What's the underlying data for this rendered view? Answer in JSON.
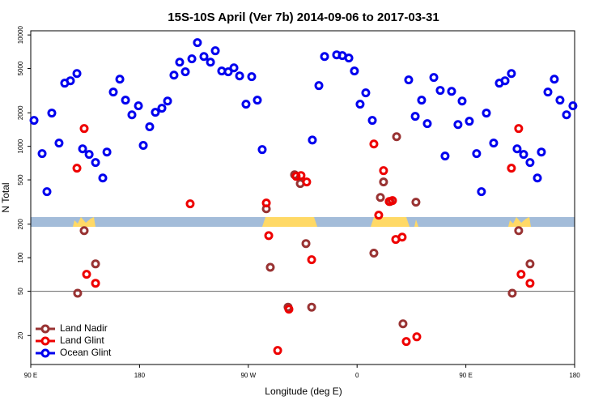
{
  "chart_data": {
    "type": "scatter",
    "title": "15S-10S April (Ver 7b)   2014-09-06 to 2017-03-31",
    "x_label": "Longitude (deg E)",
    "y_label": "N Total",
    "xlim": [
      90,
      540
    ],
    "xticks": [
      {
        "value": 90,
        "label": "90 E"
      },
      180,
      {
        "value": 270,
        "label": "90 W"
      },
      {
        "value": 360,
        "label": "0"
      },
      {
        "value": 450,
        "label": "90 E"
      },
      {
        "value": 540,
        "label": "180"
      }
    ],
    "ylim": [
      11,
      10900
    ],
    "yticks": [
      20,
      50,
      100,
      200,
      500,
      1000,
      2000,
      5000,
      10000
    ],
    "log_y": true,
    "hline": 50,
    "legend": "bottom-left",
    "series": [
      {
        "name": "Land Nadir",
        "color": "#993333",
        "x": [
          128.8,
          134.2,
          143.6,
          284.9,
          288.2,
          302.9,
          308.3,
          313.0,
          317.7,
          322.4,
          373.9,
          379.3,
          381.9,
          387.3,
          392.7,
          398.0,
          408.7,
          488.4,
          493.7,
          503.1
        ],
        "values": [
          48,
          175,
          88,
          275,
          82,
          36,
          556,
          463,
          134,
          36,
          110,
          348,
          479,
          320,
          1220,
          25.5,
          315,
          48,
          175,
          88
        ]
      },
      {
        "name": "Land Glint",
        "color": "#ee0000",
        "x": [
          128.2,
          134.2,
          136.2,
          143.6,
          221.9,
          284.9,
          286.9,
          294.3,
          303.6,
          309.6,
          313.6,
          318.3,
          322.4,
          373.9,
          377.9,
          381.9,
          386.6,
          389.3,
          392.0,
          397.3,
          400.7,
          409.4,
          487.7,
          493.7,
          495.7,
          503.1
        ],
        "values": [
          637,
          1445,
          71,
          59,
          305,
          310,
          158,
          14.7,
          34.5,
          538,
          547,
          479,
          96,
          1050,
          241,
          605,
          320,
          326,
          146,
          153,
          17.7,
          19.5,
          637,
          1445,
          71,
          59
        ]
      },
      {
        "name": "Ocean Glint",
        "color": "#0000ee",
        "x": [
          92.7,
          99.4,
          103.4,
          107.4,
          113.4,
          118.1,
          122.8,
          128.2,
          132.9,
          138.3,
          143.6,
          149.6,
          153.0,
          158.3,
          163.7,
          168.4,
          173.7,
          179.1,
          183.1,
          188.4,
          193.1,
          198.5,
          203.2,
          208.5,
          213.2,
          217.9,
          223.3,
          227.9,
          233.3,
          238.7,
          242.7,
          248.0,
          253.4,
          258.1,
          262.8,
          268.1,
          272.8,
          277.5,
          281.5,
          323.0,
          328.4,
          333.1,
          343.1,
          347.8,
          353.2,
          357.8,
          362.5,
          367.2,
          372.6,
          402.7,
          408.1,
          413.4,
          418.1,
          423.5,
          428.8,
          432.8,
          438.2,
          443.5,
          446.9,
          452.9,
          458.9,
          462.9,
          467.0,
          473.0,
          477.7,
          482.4,
          487.7,
          492.4,
          497.8,
          503.1,
          509.2,
          512.5,
          517.9,
          523.2,
          527.9,
          533.3,
          538.6
        ],
        "values": [
          1710,
          860,
          392,
          1990,
          1070,
          3690,
          3880,
          4510,
          950,
          846,
          716,
          520,
          889,
          3070,
          4010,
          2600,
          1920,
          2310,
          1020,
          1500,
          2020,
          2200,
          2550,
          4360,
          5700,
          4670,
          6100,
          8530,
          6410,
          5700,
          7210,
          4750,
          4670,
          5070,
          4290,
          2390,
          4220,
          2600,
          935,
          1140,
          3510,
          6410,
          6630,
          6530,
          6210,
          4750,
          2390,
          3020,
          1710,
          3950,
          1860,
          2600,
          1600,
          4150,
          3180,
          818,
          3120,
          1570,
          2550,
          1680,
          860,
          392,
          1990,
          1070,
          3690,
          3880,
          4510,
          950,
          846,
          716,
          520,
          889,
          3070,
          4010,
          2600,
          1920,
          2310
        ]
      }
    ]
  }
}
